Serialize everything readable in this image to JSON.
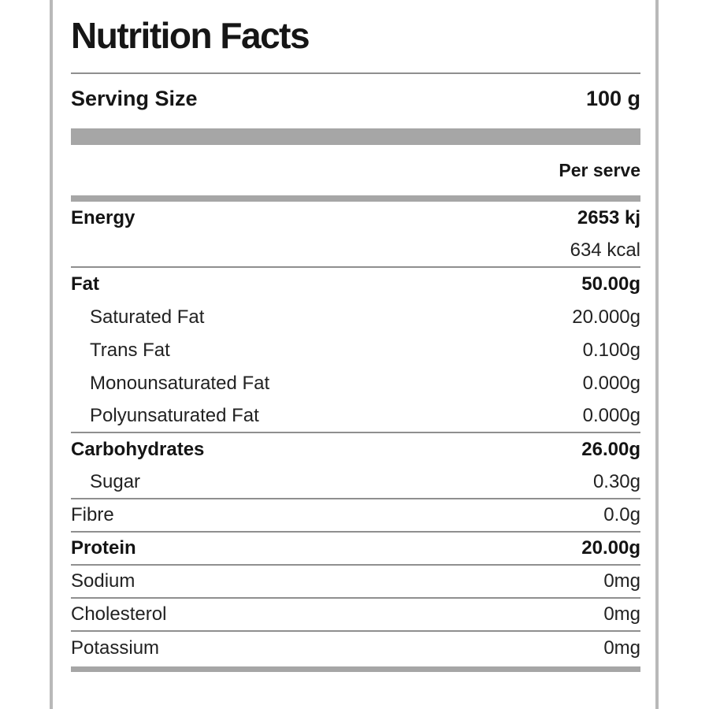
{
  "label": {
    "title": "Nutrition Facts",
    "serving": {
      "label": "Serving Size",
      "value": "100 g"
    },
    "column_header": "Per serve",
    "rows": [
      {
        "name": "Energy",
        "value": "2653 kj",
        "emphasis": true,
        "indent": false,
        "divider_after": false
      },
      {
        "name": "",
        "value": "634 kcal",
        "emphasis": false,
        "indent": false,
        "divider_after": true
      },
      {
        "name": "Fat",
        "value": "50.00g",
        "emphasis": true,
        "indent": false,
        "divider_after": false
      },
      {
        "name": "Saturated Fat",
        "value": "20.000g",
        "emphasis": false,
        "indent": true,
        "divider_after": false
      },
      {
        "name": "Trans Fat",
        "value": "0.100g",
        "emphasis": false,
        "indent": true,
        "divider_after": false
      },
      {
        "name": "Monounsaturated Fat",
        "value": "0.000g",
        "emphasis": false,
        "indent": true,
        "divider_after": false
      },
      {
        "name": "Polyunsaturated Fat",
        "value": "0.000g",
        "emphasis": false,
        "indent": true,
        "divider_after": true
      },
      {
        "name": "Carbohydrates",
        "value": "26.00g",
        "emphasis": true,
        "indent": false,
        "divider_after": false
      },
      {
        "name": "Sugar",
        "value": "0.30g",
        "emphasis": false,
        "indent": true,
        "divider_after": true
      },
      {
        "name": "Fibre",
        "value": "0.0g",
        "emphasis": false,
        "indent": false,
        "divider_after": true
      },
      {
        "name": "Protein",
        "value": "20.00g",
        "emphasis": true,
        "indent": false,
        "divider_after": true
      },
      {
        "name": "Sodium",
        "value": "0mg",
        "emphasis": false,
        "indent": false,
        "divider_after": true
      },
      {
        "name": "Cholesterol",
        "value": "0mg",
        "emphasis": false,
        "indent": false,
        "divider_after": true
      },
      {
        "name": "Potassium",
        "value": "0mg",
        "emphasis": false,
        "indent": false,
        "divider_after": false
      }
    ],
    "colors": {
      "text": "#1c1c1c",
      "divider": "#8f8f8f",
      "separator_bar": "#a6a6a6",
      "frame_border": "#b9b9b9",
      "background": "#ffffff"
    }
  }
}
